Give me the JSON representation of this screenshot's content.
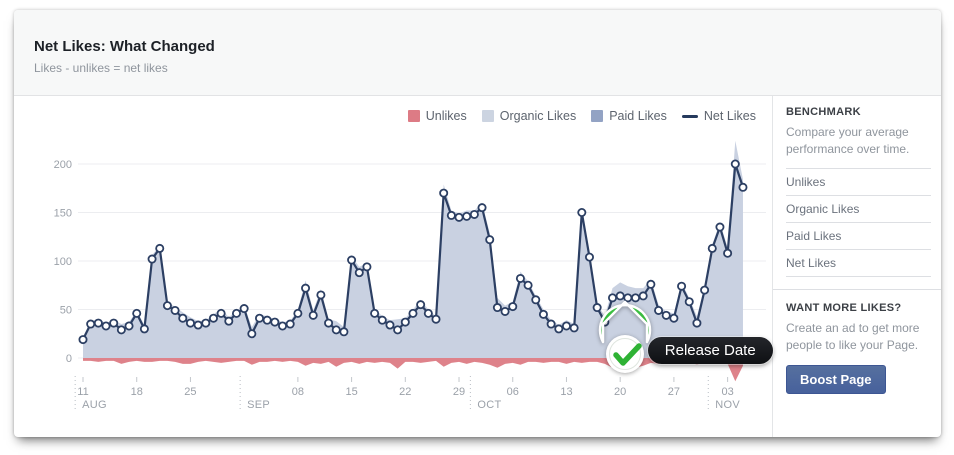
{
  "header": {
    "title": "Net Likes: What Changed",
    "subtitle": "Likes - unlikes = net likes"
  },
  "legend": [
    {
      "label": "Unlikes",
      "color": "#dd7b85",
      "marker": "swatch"
    },
    {
      "label": "Organic Likes",
      "color": "#ccd4e1",
      "marker": "swatch"
    },
    {
      "label": "Paid Likes",
      "color": "#93a3c4",
      "marker": "swatch"
    },
    {
      "label": "Net Likes",
      "color": "#263a5d",
      "marker": "line"
    }
  ],
  "chart_data": {
    "type": "area",
    "title": "Net Likes: What Changed",
    "ylabel": "",
    "xlabel": "",
    "ylim": [
      -30,
      220
    ],
    "y_ticks": [
      0,
      50,
      100,
      150,
      200
    ],
    "x_ticks": [
      {
        "day": 0,
        "label": "11"
      },
      {
        "day": 7,
        "label": "18"
      },
      {
        "day": 14,
        "label": "25"
      },
      {
        "day": 28,
        "label": "08"
      },
      {
        "day": 35,
        "label": "15"
      },
      {
        "day": 42,
        "label": "22"
      },
      {
        "day": 49,
        "label": "29"
      },
      {
        "day": 56,
        "label": "06"
      },
      {
        "day": 63,
        "label": "13"
      },
      {
        "day": 70,
        "label": "20"
      },
      {
        "day": 77,
        "label": "27"
      },
      {
        "day": 84,
        "label": "03"
      }
    ],
    "months": [
      {
        "label": "AUG",
        "day": -0.5
      },
      {
        "label": "SEP",
        "day": 21
      },
      {
        "label": "OCT",
        "day": 51
      },
      {
        "label": "NOV",
        "day": 82
      }
    ],
    "series": [
      {
        "name": "Net Likes",
        "values": [
          19,
          35,
          36,
          33,
          36,
          29,
          33,
          46,
          30,
          102,
          113,
          54,
          49,
          41,
          36,
          34,
          36,
          41,
          46,
          38,
          46,
          51,
          25,
          41,
          39,
          37,
          33,
          35,
          46,
          72,
          44,
          65,
          36,
          29,
          27,
          101,
          88,
          94,
          46,
          39,
          34,
          29,
          37,
          46,
          55,
          46,
          40,
          170,
          147,
          145,
          146,
          148,
          155,
          122,
          52,
          48,
          53,
          82,
          75,
          60,
          45,
          35,
          30,
          33,
          31,
          150,
          104,
          52,
          37,
          62,
          64,
          62,
          62,
          64,
          76,
          49,
          44,
          41,
          74,
          58,
          36,
          70,
          113,
          135,
          108,
          200,
          176
        ]
      },
      {
        "name": "Unlikes",
        "values": [
          3,
          3,
          4,
          3,
          3,
          6,
          4,
          3,
          4,
          4,
          3,
          3,
          4,
          6,
          6,
          4,
          3,
          4,
          5,
          4,
          3,
          3,
          7,
          4,
          4,
          3,
          4,
          3,
          4,
          8,
          5,
          6,
          4,
          9,
          5,
          4,
          6,
          4,
          5,
          4,
          5,
          11,
          4,
          4,
          5,
          4,
          3,
          9,
          5,
          4,
          6,
          4,
          5,
          7,
          10,
          6,
          5,
          7,
          4,
          4,
          5,
          4,
          4,
          6,
          4,
          5,
          4,
          4,
          6,
          10,
          14,
          12,
          10,
          8,
          5,
          6,
          4,
          5,
          4,
          4,
          7,
          4,
          4,
          5,
          6,
          24,
          8
        ]
      }
    ],
    "annotation": {
      "label": "Release Date",
      "day": 70.6
    },
    "colors": {
      "organic_area": "#c9d1e1",
      "unlikes_area": "#dc7b84",
      "net_line": "#2c3f63",
      "grid": "#ecedf0",
      "axis_text": "#9ba1a9",
      "pin_green": "#31b437"
    },
    "legend_position": "top-right",
    "grid": true
  },
  "sidebar": {
    "benchmark": {
      "heading": "BENCHMARK",
      "description": "Compare your average performance over time.",
      "items": [
        "Unlikes",
        "Organic Likes",
        "Paid Likes",
        "Net Likes"
      ]
    },
    "promo": {
      "heading": "WANT MORE LIKES?",
      "description": "Create an ad to get more people to like your Page.",
      "button_label": "Boost Page"
    }
  }
}
